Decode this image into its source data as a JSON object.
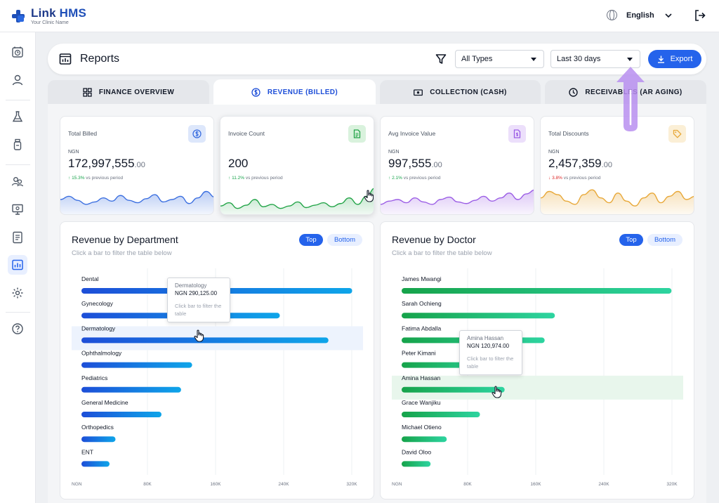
{
  "app": {
    "name_a": "Link",
    "name_b": " HMS",
    "tagline": "Your Clinic Name"
  },
  "topbar": {
    "language": "English"
  },
  "sidebar": {
    "items": [
      {
        "icon": "clock-icon"
      },
      {
        "icon": "user-icon"
      },
      {
        "icon": "flask-icon"
      },
      {
        "icon": "bottle-icon"
      },
      {
        "icon": "users-icon"
      },
      {
        "icon": "monitor-icon"
      },
      {
        "icon": "document-icon"
      },
      {
        "icon": "reports-icon",
        "active": true
      },
      {
        "icon": "settings-icon"
      },
      {
        "icon": "help-icon"
      }
    ]
  },
  "header": {
    "title": "Reports",
    "type_filter": "All Types",
    "date_filter": "Last 30 days",
    "export_label": "Export"
  },
  "tabs": [
    {
      "label": "FINANCE OVERVIEW",
      "icon": "grid-icon"
    },
    {
      "label": "REVENUE (BILLED)",
      "icon": "dollar-icon",
      "active": true
    },
    {
      "label": "COLLECTION (CASH)",
      "icon": "cash-icon"
    },
    {
      "label": "RECEIVABLES (AR AGING)",
      "icon": "clock-icon"
    }
  ],
  "kpis": [
    {
      "label": "Total Billed",
      "currency": "NGN",
      "value": "172,997,555",
      "decimals": ".00",
      "trend_value": "15.3%",
      "trend_dir": "up",
      "trend_text": " vs previous period",
      "color": "#3b6fe0",
      "icon": "dollar-icon",
      "badge_bg": "#dde7fb",
      "spark": [
        20,
        24,
        19,
        14,
        17,
        22,
        18,
        25,
        19,
        16,
        21,
        26,
        17,
        20,
        24,
        15,
        22,
        30,
        23
      ]
    },
    {
      "label": "Invoice Count",
      "currency": "",
      "value": "200",
      "decimals": "",
      "trend_value": "11.2%",
      "trend_dir": "up",
      "trend_text": " vs previous period",
      "color": "#22a447",
      "icon": "file-icon",
      "badge_bg": "#d9f2dd",
      "spark": [
        12,
        16,
        9,
        13,
        20,
        11,
        14,
        9,
        12,
        17,
        10,
        13,
        16,
        11,
        15,
        22,
        14,
        24,
        34
      ]
    },
    {
      "label": "Avg Invoice Value",
      "currency": "NGN",
      "value": "997,555",
      "decimals": ".00",
      "trend_value": "2.1%",
      "trend_dir": "up",
      "trend_text": " vs previous period",
      "color": "#9b5de5",
      "icon": "file-dollar-icon",
      "badge_bg": "#ecdffb",
      "spark": [
        14,
        18,
        20,
        16,
        22,
        17,
        14,
        20,
        23,
        17,
        15,
        19,
        24,
        18,
        22,
        28,
        20,
        27,
        32
      ]
    },
    {
      "label": "Total Discounts",
      "currency": "NGN",
      "value": "2,457,359",
      "decimals": ".00",
      "trend_value": "3.8%",
      "trend_dir": "down",
      "trend_text": " vs previous period",
      "color": "#e8a838",
      "icon": "tag-icon",
      "badge_bg": "#fbefd6",
      "spark": [
        22,
        30,
        26,
        18,
        14,
        26,
        32,
        22,
        16,
        28,
        18,
        12,
        22,
        28,
        16,
        24,
        30,
        20,
        24
      ]
    }
  ],
  "dept_chart": {
    "title": "Revenue by Department",
    "subtitle": "Click a bar to filter the table below",
    "top_label": "Top",
    "bottom_label": "Bottom",
    "chart_data": {
      "type": "bar",
      "orientation": "horizontal",
      "categories": [
        "Dental",
        "Gynecology",
        "Dermatology",
        "Ophthalmology",
        "Pediatrics",
        "General Medicine",
        "Orthopedics",
        "ENT"
      ],
      "values": [
        318000,
        233000,
        290125,
        130000,
        117000,
        94000,
        40000,
        33000
      ],
      "x_ticks": [
        "NGN",
        "80K",
        "160K",
        "240K",
        "320K"
      ],
      "xlim": [
        0,
        320000
      ],
      "highlighted": "Dermatology",
      "colors": [
        "#1d4ed8",
        "#0ea5e9"
      ]
    },
    "tooltip": {
      "name": "Dermatology",
      "value": "NGN 290,125.00",
      "hint": "Click bar to filter the table"
    }
  },
  "doc_chart": {
    "title": "Revenue by Doctor",
    "subtitle": "Click a bar to filter the table below",
    "top_label": "Top",
    "bottom_label": "Bottom",
    "chart_data": {
      "type": "bar",
      "orientation": "horizontal",
      "categories": [
        "James Mwangi",
        "Sarah Ochieng",
        "Fatima Abdalla",
        "Peter Kimani",
        "Amina Hassan",
        "Grace Wanjiku",
        "Michael Otieno",
        "David Oloo"
      ],
      "values": [
        317000,
        180000,
        168000,
        112000,
        120974,
        92000,
        53000,
        34000
      ],
      "x_ticks": [
        "NGN",
        "80K",
        "160K",
        "240K",
        "320K"
      ],
      "xlim": [
        0,
        320000
      ],
      "highlighted": "Amina Hassan",
      "colors": [
        "#16a34a",
        "#2dd4a0"
      ]
    },
    "tooltip": {
      "name": "Amina Hassan",
      "value": "NGN 120,974.00",
      "hint": "Click bar to filter the table"
    }
  }
}
